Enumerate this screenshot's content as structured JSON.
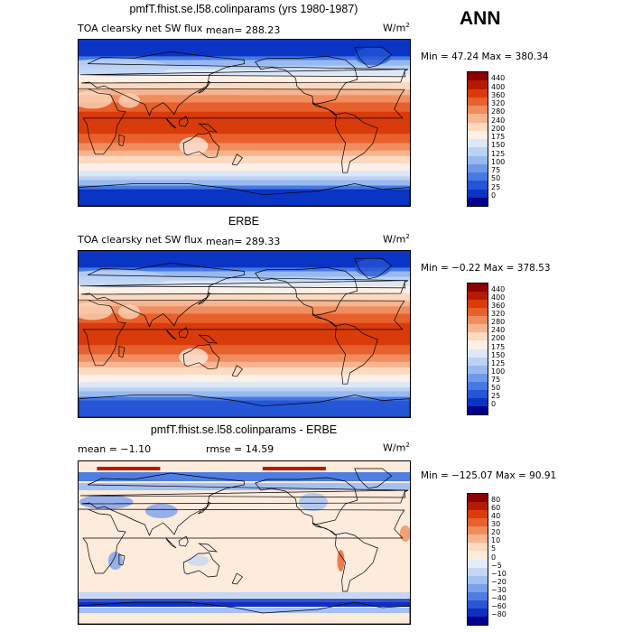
{
  "season": "ANN",
  "panels": [
    {
      "title": "pmfT.fhist.se.l58.colinparams (yrs 1980-1987)",
      "variable": "TOA clearsky net SW flux",
      "stat1": "mean=  288.23",
      "stat2": "",
      "units": "W/m",
      "units_sup": "2",
      "minmax": "Min =  47.24  Max = 380.34",
      "field": "model",
      "colorbar_labels": [
        "440",
        "400",
        "360",
        "320",
        "280",
        "240",
        "200",
        "175",
        "150",
        "125",
        "100",
        "75",
        "50",
        "25",
        "0"
      ]
    },
    {
      "title": "ERBE",
      "variable": "TOA clearsky net SW flux",
      "stat1": "mean=  289.33",
      "stat2": "",
      "units": "W/m",
      "units_sup": "2",
      "minmax": "Min =  −0.22  Max = 378.53",
      "field": "obs",
      "colorbar_labels": [
        "440",
        "400",
        "360",
        "320",
        "280",
        "240",
        "200",
        "175",
        "150",
        "125",
        "100",
        "75",
        "50",
        "25",
        "0"
      ]
    },
    {
      "title": "pmfT.fhist.se.l58.colinparams - ERBE",
      "variable": "",
      "stat1": "mean =   −1.10",
      "stat2": "rmse =   14.59",
      "units": "W/m",
      "units_sup": "2",
      "minmax": "Min = −125.07  Max =  90.91",
      "field": "diff",
      "colorbar_labels": [
        "80",
        "60",
        "40",
        "30",
        "20",
        "10",
        "5",
        "0",
        "−5",
        "−10",
        "−20",
        "−30",
        "−40",
        "−60",
        "−80"
      ]
    }
  ],
  "colors": {
    "flux_scale": [
      "#8b0000",
      "#b51a00",
      "#d93b0a",
      "#e8602c",
      "#f08d5e",
      "#f7b48e",
      "#fcd9c0",
      "#fdf0e6",
      "#dce8f8",
      "#bcd2f4",
      "#98b9f0",
      "#6f98ea",
      "#4679e4",
      "#2556d6",
      "#0b34c4",
      "#00008f"
    ],
    "diff_scale": [
      "#8b0000",
      "#b51a00",
      "#d93b0a",
      "#e8602c",
      "#f08d5e",
      "#f7b48e",
      "#fcd9c0",
      "#fdebdc",
      "#e4ecf9",
      "#c6d7f5",
      "#a3c0f1",
      "#7ba0eb",
      "#4f7ee3",
      "#2b55d3",
      "#0f2fc0",
      "#00008f"
    ],
    "coastline": "#000000"
  }
}
